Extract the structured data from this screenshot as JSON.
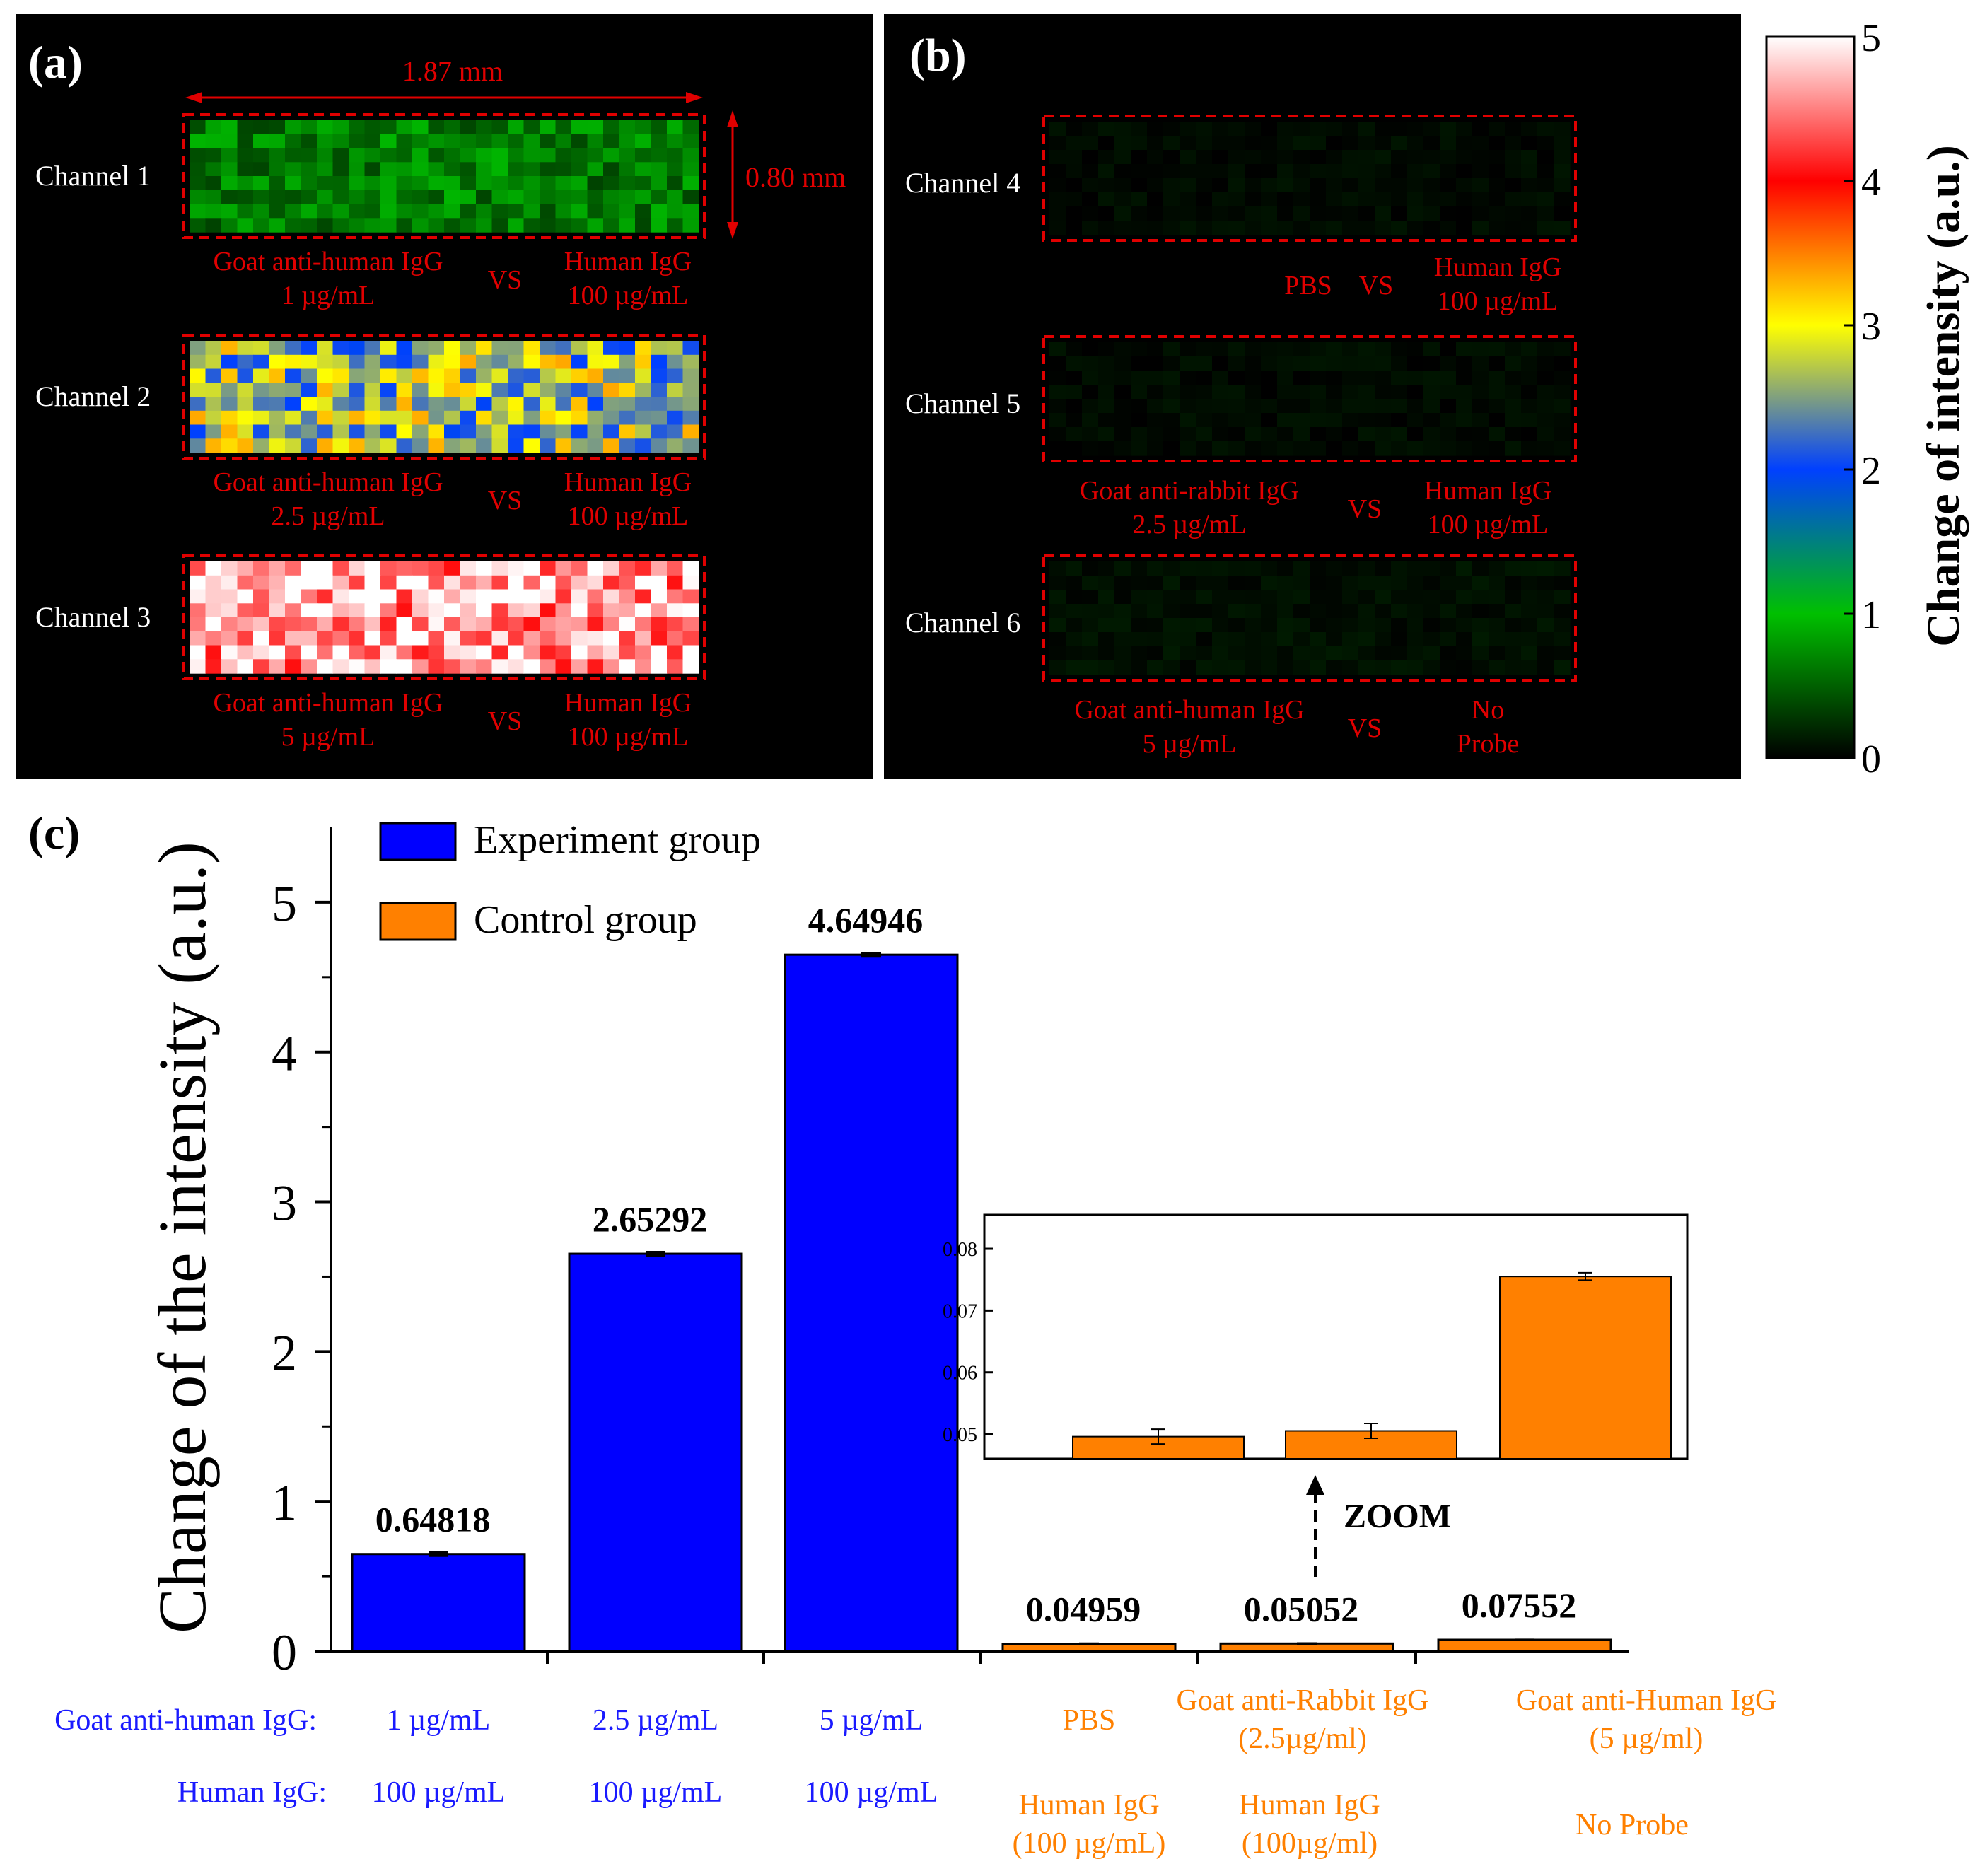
{
  "panels": {
    "a": {
      "label": "(a)",
      "width_annotation": "1.87 mm",
      "height_annotation": "0.80 mm",
      "channels": [
        {
          "name": "Channel 1",
          "left_line1": "Goat anti-human IgG",
          "left_line2": "1 µg/mL",
          "vs": "VS",
          "right_line1": "Human IgG",
          "right_line2": "100 µg/mL",
          "mean_intensity": 0.64818
        },
        {
          "name": "Channel 2",
          "left_line1": "Goat anti-human IgG",
          "left_line2": "2.5 µg/mL",
          "vs": "VS",
          "right_line1": "Human IgG",
          "right_line2": "100 µg/mL",
          "mean_intensity": 2.65292
        },
        {
          "name": "Channel 3",
          "left_line1": "Goat anti-human IgG",
          "left_line2": "5 µg/mL",
          "vs": "VS",
          "right_line1": "Human IgG",
          "right_line2": "100 µg/mL",
          "mean_intensity": 4.64946
        }
      ]
    },
    "b": {
      "label": "(b)",
      "channels": [
        {
          "name": "Channel 4",
          "left_line1": "PBS",
          "left_line2": "",
          "vs": "VS",
          "right_line1": "Human IgG",
          "right_line2": "100 µg/mL",
          "mean_intensity": 0.04959
        },
        {
          "name": "Channel 5",
          "left_line1": "Goat anti-rabbit IgG",
          "left_line2": "2.5 µg/mL",
          "vs": "VS",
          "right_line1": "Human IgG",
          "right_line2": "100 µg/mL",
          "mean_intensity": 0.05052
        },
        {
          "name": "Channel 6",
          "left_line1": "Goat anti-human IgG",
          "left_line2": "5 µg/mL",
          "vs": "VS",
          "right_line1": "No",
          "right_line2": "Probe",
          "mean_intensity": 0.07552
        }
      ]
    },
    "colorbar": {
      "title": "Change of intensity (a.u.)",
      "ticks": [
        "0",
        "1",
        "2",
        "3",
        "4",
        "5"
      ],
      "range": [
        0,
        5
      ]
    },
    "c": {
      "label": "(c)"
    }
  },
  "row_labels": {
    "probe": "Goat anti-human IgG:",
    "target": "Human IgG:"
  },
  "chart_data": [
    {
      "type": "bar",
      "title": "",
      "ylabel": "Change of the intensity (a.u.)",
      "ylim": [
        0,
        5.5
      ],
      "yticks": [
        "0",
        "1",
        "2",
        "3",
        "4",
        "5"
      ],
      "legend": {
        "position": "top-left",
        "entries": [
          "Experiment group",
          "Control group"
        ]
      },
      "categories": [
        {
          "line1": "1 µg/mL",
          "line2": "",
          "line3": "100 µg/mL",
          "line4": ""
        },
        {
          "line1": "2.5 µg/mL",
          "line2": "",
          "line3": "100 µg/mL",
          "line4": ""
        },
        {
          "line1": "5 µg/mL",
          "line2": "",
          "line3": "100 µg/mL",
          "line4": ""
        },
        {
          "line1": "PBS",
          "line2": "",
          "line3": "Human IgG",
          "line4": "(100 µg/mL)"
        },
        {
          "line1": "Goat anti-Rabbit IgG",
          "line2": "(2.5µg/ml)",
          "line3": "Human IgG",
          "line4": "(100µg/ml)"
        },
        {
          "line1": "Goat anti-Human IgG",
          "line2": "(5 µg/ml)",
          "line3": "No Probe",
          "line4": ""
        }
      ],
      "series": [
        {
          "name": "Experiment group",
          "color": "#0000ff",
          "values": [
            0.64818,
            2.65292,
            4.64946,
            null,
            null,
            null
          ],
          "errors": [
            0.012,
            0.012,
            0.012,
            null,
            null,
            null
          ]
        },
        {
          "name": "Control group",
          "color": "#ff8000",
          "values": [
            null,
            null,
            null,
            0.04959,
            0.05052,
            0.07552
          ],
          "errors": [
            null,
            null,
            null,
            0.0012,
            0.0012,
            0.0006
          ]
        }
      ],
      "data_labels": [
        "0.64818",
        "2.65292",
        "4.64946",
        "0.04959",
        "0.05052",
        "0.07552"
      ]
    },
    {
      "type": "bar",
      "title": "inset",
      "annotation": "ZOOM",
      "ylim": [
        0.046,
        0.0855
      ],
      "yticks": [
        "0.05",
        "0.06",
        "0.07",
        "0.08"
      ],
      "categories": [
        "PBS",
        "Goat anti-Rabbit IgG",
        "Goat anti-Human IgG"
      ],
      "series": [
        {
          "name": "Control group",
          "color": "#ff8000",
          "values": [
            0.04959,
            0.05052,
            0.07552
          ],
          "errors": [
            0.0012,
            0.0012,
            0.0006
          ]
        }
      ]
    }
  ],
  "colors": {
    "experiment": "#0000ff",
    "control": "#ff8000",
    "annotation": "#e00000",
    "axis": "#000000"
  }
}
